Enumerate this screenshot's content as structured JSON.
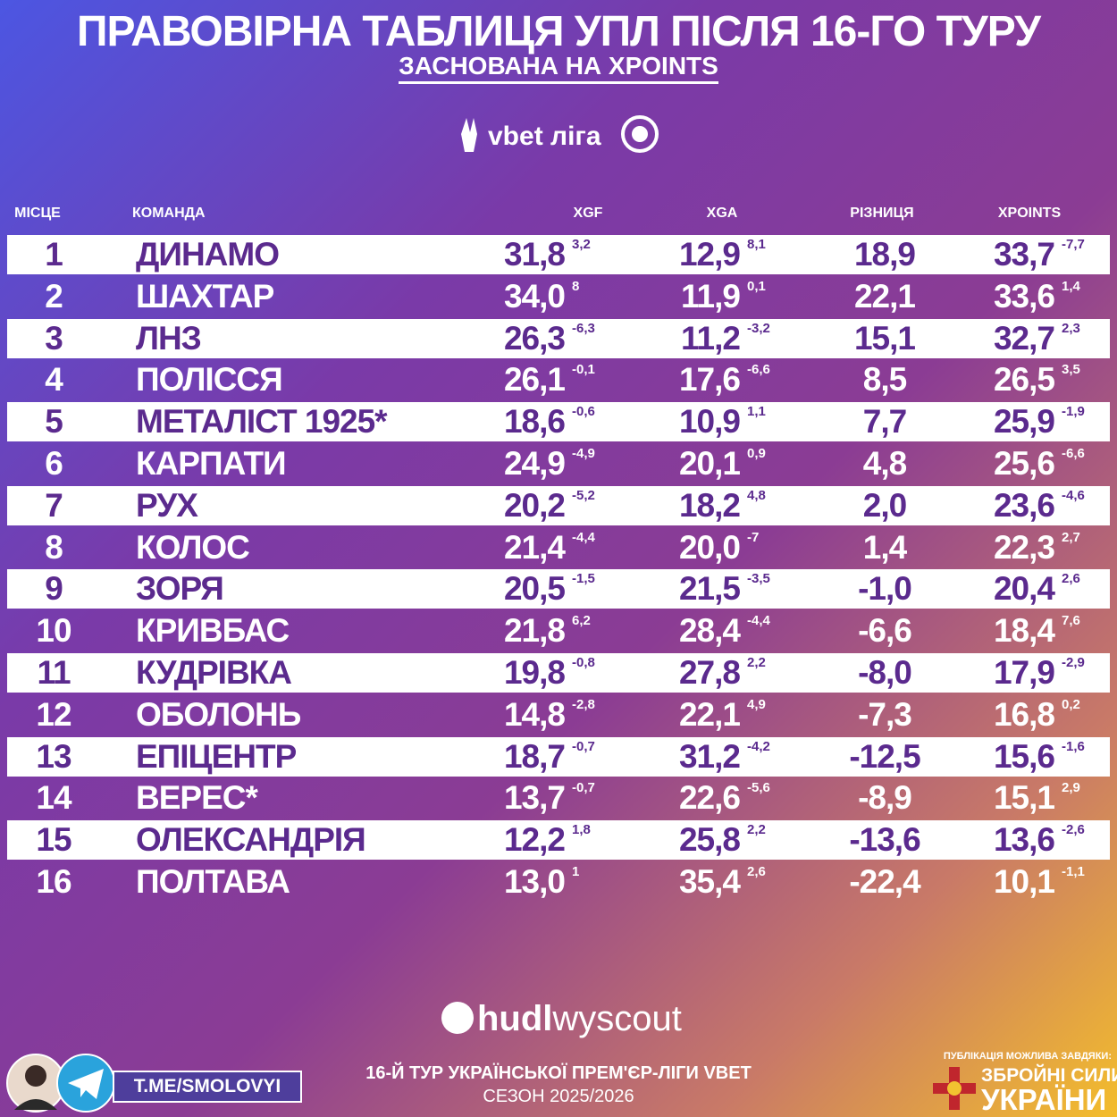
{
  "header": {
    "title": "ПРАВОВІРНА ТАБЛИЦЯ УПЛ ПІСЛЯ 16-ГО ТУРУ",
    "subtitle": "ЗАСНОВАНА НА XPOINTS",
    "league_logo": "vbet ліга"
  },
  "table": {
    "columns": [
      "МІСЦЕ",
      "КОМАНДА",
      "XGF",
      "XGA",
      "РІЗНИЦЯ",
      "XPOINTS"
    ],
    "rows": [
      [
        "1",
        "ДИНАМО",
        "31,8",
        "3,2",
        "12,9",
        "8,1",
        "18,9",
        "33,7",
        "-7,7"
      ],
      [
        "2",
        "ШАХТАР",
        "34,0",
        "8",
        "11,9",
        "0,1",
        "22,1",
        "33,6",
        "1,4"
      ],
      [
        "3",
        "ЛНЗ",
        "26,3",
        "-6,3",
        "11,2",
        "-3,2",
        "15,1",
        "32,7",
        "2,3"
      ],
      [
        "4",
        "ПОЛІССЯ",
        "26,1",
        "-0,1",
        "17,6",
        "-6,6",
        "8,5",
        "26,5",
        "3,5"
      ],
      [
        "5",
        "МЕТАЛІСТ 1925*",
        "18,6",
        "-0,6",
        "10,9",
        "1,1",
        "7,7",
        "25,9",
        "-1,9"
      ],
      [
        "6",
        "КАРПАТИ",
        "24,9",
        "-4,9",
        "20,1",
        "0,9",
        "4,8",
        "25,6",
        "-6,6"
      ],
      [
        "7",
        "РУХ",
        "20,2",
        "-5,2",
        "18,2",
        "4,8",
        "2,0",
        "23,6",
        "-4,6"
      ],
      [
        "8",
        "КОЛОС",
        "21,4",
        "-4,4",
        "20,0",
        "-7",
        "1,4",
        "22,3",
        "2,7"
      ],
      [
        "9",
        "ЗОРЯ",
        "20,5",
        "-1,5",
        "21,5",
        "-3,5",
        "-1,0",
        "20,4",
        "2,6"
      ],
      [
        "10",
        "КРИВБАС",
        "21,8",
        "6,2",
        "28,4",
        "-4,4",
        "-6,6",
        "18,4",
        "7,6"
      ],
      [
        "11",
        "КУДРІВКА",
        "19,8",
        "-0,8",
        "27,8",
        "2,2",
        "-8,0",
        "17,9",
        "-2,9"
      ],
      [
        "12",
        "ОБОЛОНЬ",
        "14,8",
        "-2,8",
        "22,1",
        "4,9",
        "-7,3",
        "16,8",
        "0,2"
      ],
      [
        "13",
        "ЕПІЦЕНТР",
        "18,7",
        "-0,7",
        "31,2",
        "-4,2",
        "-12,5",
        "15,6",
        "-1,6"
      ],
      [
        "14",
        "ВЕРЕС*",
        "13,7",
        "-0,7",
        "22,6",
        "-5,6",
        "-8,9",
        "15,1",
        "2,9"
      ],
      [
        "15",
        "ОЛЕКСАНДРІЯ",
        "12,2",
        "1,8",
        "25,8",
        "2,2",
        "-13,6",
        "13,6",
        "-2,6"
      ],
      [
        "16",
        "ПОЛТАВА",
        "13,0",
        "1",
        "35,4",
        "2,6",
        "-22,4",
        "10,1",
        "-1,1"
      ]
    ]
  },
  "footer": {
    "logo_hudl": "hudl",
    "logo_wyscout": "wyscout",
    "telegram": "T.ME/SMOLOVYI",
    "line1": "16-Й ТУР УКРАЇНСЬКОЇ ПРЕМ'ЄР-ЛІГИ VBET",
    "line2": "СЕЗОН 2025/2026",
    "sponsor_note": "ПУБЛІКАЦІЯ МОЖЛИВА ЗАВДЯКИ:",
    "sponsor_1": "ЗБРОЙНІ СИЛИ",
    "sponsor_2": "УКРАЇНИ"
  }
}
